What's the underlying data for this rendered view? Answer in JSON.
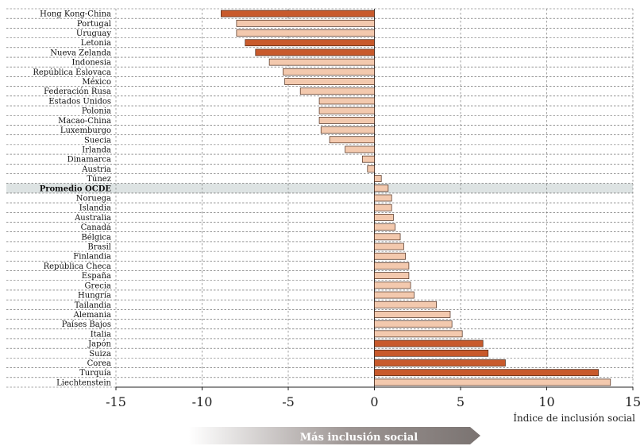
{
  "chart_data": {
    "type": "bar",
    "orientation": "horizontal",
    "xlabel": "Índice de inclusión social",
    "xlim": [
      -15,
      15
    ],
    "xticks": [
      -15,
      -10,
      -5,
      0,
      5,
      10,
      15
    ],
    "grid": true,
    "arrow_label": "Más inclusión social",
    "categories": [
      "Hong Kong-China",
      "Portugal",
      "Uruguay",
      "Letonia",
      "Nueva Zelanda",
      "Indonesia",
      "República Eslovaca",
      "México",
      "Federación Rusa",
      "Estados Unidos",
      "Polonia",
      "Macao-China",
      "Luxemburgo",
      "Suecia",
      "Irlanda",
      "Dinamarca",
      "Austria",
      "Túnez",
      "Promedio OCDE",
      "Noruega",
      "Islandia",
      "Australia",
      "Canadá",
      "Bélgica",
      "Brasil",
      "Finlandia",
      "República Checa",
      "España",
      "Grecia",
      "Hungría",
      "Tailandia",
      "Alemania",
      "Países Bajos",
      "Italia",
      "Japón",
      "Suiza",
      "Corea",
      "Turquía",
      "Liechtenstein"
    ],
    "values": [
      -8.9,
      -8.0,
      -8.0,
      -7.5,
      -6.9,
      -6.1,
      -5.3,
      -5.2,
      -4.3,
      -3.2,
      -3.2,
      -3.2,
      -3.1,
      -2.6,
      -1.7,
      -0.7,
      -0.4,
      0.4,
      0.8,
      1.0,
      1.0,
      1.1,
      1.2,
      1.5,
      1.7,
      1.8,
      2.0,
      2.0,
      2.1,
      2.3,
      3.6,
      4.4,
      4.5,
      5.1,
      6.3,
      6.6,
      7.6,
      13.0,
      13.7
    ],
    "highlight": [
      true,
      false,
      false,
      true,
      true,
      false,
      false,
      false,
      false,
      false,
      false,
      false,
      false,
      false,
      false,
      false,
      false,
      false,
      false,
      false,
      false,
      false,
      false,
      false,
      false,
      false,
      false,
      false,
      false,
      false,
      false,
      false,
      false,
      false,
      true,
      true,
      true,
      true,
      false
    ],
    "reference_category": "Promedio OCDE",
    "colors": {
      "highlight_fill": "#c85a2c",
      "normal_fill": "#f3c9ae",
      "bar_stroke": "#4a2a1a",
      "reference_band": "#dde3e3",
      "arrow_dark": "#7f7876"
    }
  }
}
